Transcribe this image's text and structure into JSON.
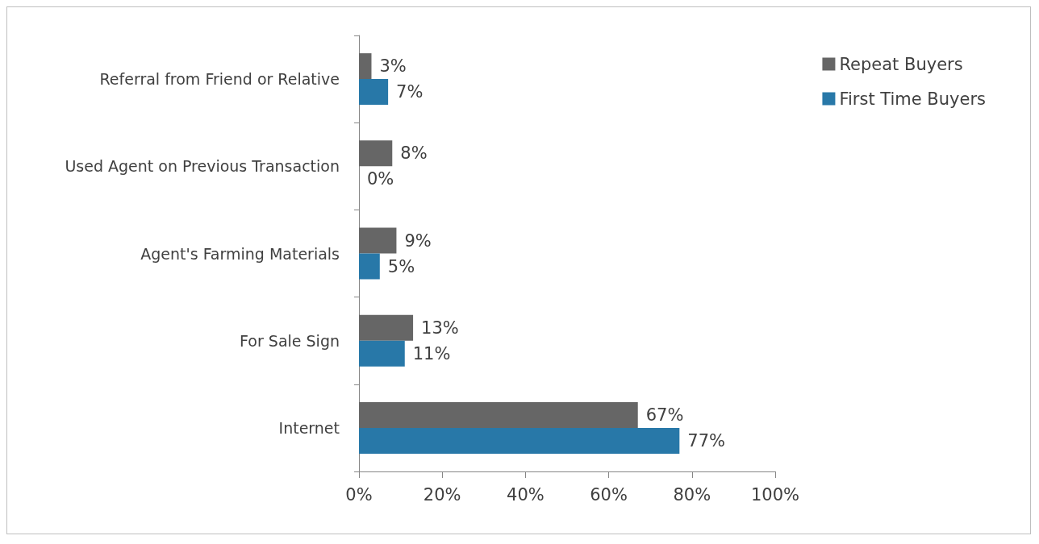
{
  "chart_data": {
    "type": "bar",
    "orientation": "horizontal",
    "categories": [
      "Referral from Friend or Relative",
      "Used Agent on Previous Transaction",
      "Agent's Farming Materials",
      "For Sale Sign",
      "Internet"
    ],
    "series": [
      {
        "name": "Repeat Buyers",
        "color": "#666666",
        "values": [
          3,
          8,
          9,
          13,
          67
        ],
        "value_labels": [
          "3%",
          "8%",
          "9%",
          "13%",
          "67%"
        ]
      },
      {
        "name": "First Time Buyers",
        "color": "#2878a8",
        "values": [
          7,
          0,
          5,
          11,
          77
        ],
        "value_labels": [
          "7%",
          "0%",
          "5%",
          "11%",
          "77%"
        ]
      }
    ],
    "xlim": [
      0,
      100
    ],
    "xticks": [
      {
        "value": 0,
        "label": "0%"
      },
      {
        "value": 20,
        "label": "20%"
      },
      {
        "value": 40,
        "label": "40%"
      },
      {
        "value": 60,
        "label": "60%"
      },
      {
        "value": 80,
        "label": "80%"
      },
      {
        "value": 100,
        "label": "100%"
      }
    ],
    "grid": false,
    "legend": "top right"
  }
}
